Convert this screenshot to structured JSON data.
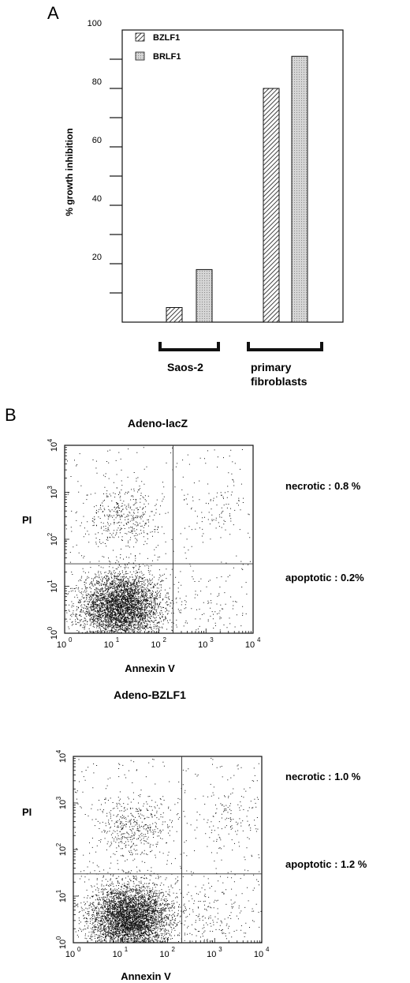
{
  "chart_data": [
    {
      "type": "bar",
      "panel_letter": "A",
      "ylabel": "% growth inhibition",
      "yticks": [
        "20",
        "40",
        "60",
        "80",
        "100"
      ],
      "ylim": [
        0,
        100
      ],
      "categories": [
        "Saos-2",
        "primary fibroblasts"
      ],
      "group_labels": [
        [
          "Saos-2"
        ],
        [
          "primary",
          "fibroblasts"
        ]
      ],
      "series": [
        {
          "name": "BZLF1",
          "values": [
            5,
            80
          ],
          "pattern": "hatch"
        },
        {
          "name": "BRLF1",
          "values": [
            18,
            91
          ],
          "pattern": "dots"
        }
      ],
      "legend_position": "top-left"
    },
    {
      "type": "scatter",
      "panel_letter": "B",
      "title": "Adeno-lacZ",
      "xlabel": "Annexin V",
      "ylabel": "PI",
      "scale": "log",
      "xlim": [
        1,
        10000
      ],
      "ylim": [
        1,
        10000
      ],
      "xticks": [
        {
          "base": "10",
          "exp": "0"
        },
        {
          "base": "10",
          "exp": "1"
        },
        {
          "base": "10",
          "exp": "2"
        },
        {
          "base": "10",
          "exp": "3"
        },
        {
          "base": "10",
          "exp": "4"
        }
      ],
      "yticks": [
        {
          "base": "10",
          "exp": "0"
        },
        {
          "base": "10",
          "exp": "1"
        },
        {
          "base": "10",
          "exp": "2"
        },
        {
          "base": "10",
          "exp": "3"
        },
        {
          "base": "10",
          "exp": "4"
        }
      ],
      "gate_x": 200,
      "gate_y": 30,
      "annotations": [
        "necrotic : 0.8 %",
        "apoptotic : 0.2%"
      ]
    },
    {
      "type": "scatter",
      "title": "Adeno-BZLF1",
      "xlabel": "Annexin V",
      "ylabel": "PI",
      "scale": "log",
      "xlim": [
        1,
        10000
      ],
      "ylim": [
        1,
        10000
      ],
      "xticks": [
        {
          "base": "10",
          "exp": "0"
        },
        {
          "base": "10",
          "exp": "1"
        },
        {
          "base": "10",
          "exp": "2"
        },
        {
          "base": "10",
          "exp": "3"
        },
        {
          "base": "10",
          "exp": "4"
        }
      ],
      "yticks": [
        {
          "base": "10",
          "exp": "0"
        },
        {
          "base": "10",
          "exp": "1"
        },
        {
          "base": "10",
          "exp": "2"
        },
        {
          "base": "10",
          "exp": "3"
        },
        {
          "base": "10",
          "exp": "4"
        }
      ],
      "gate_x": 200,
      "gate_y": 30,
      "annotations": [
        "necrotic : 1.0 %",
        "apoptotic : 1.2 %"
      ]
    }
  ]
}
